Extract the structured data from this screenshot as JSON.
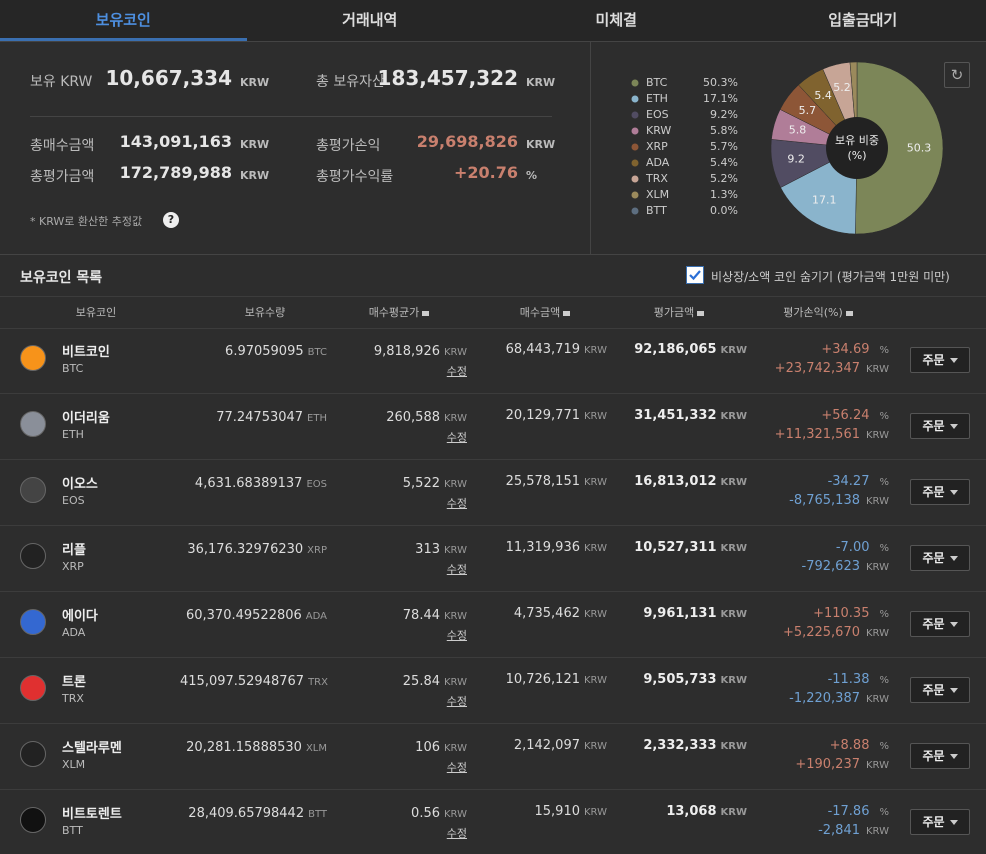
{
  "tabs": {
    "items": [
      "보유코인",
      "거래내역",
      "미체결",
      "입출금대기"
    ],
    "active": 0
  },
  "summary": {
    "items": [
      {
        "label": "보유 KRW",
        "value": "10,667,334",
        "unit": "KRW"
      },
      {
        "label": "총 보유자산",
        "value": "183,457,322",
        "unit": "KRW"
      },
      {
        "label": "총매수금액",
        "value": "143,091,163",
        "unit": "KRW"
      },
      {
        "label": "총평가손익",
        "value": "29,698,826",
        "unit": "KRW",
        "color": "#c9806e"
      },
      {
        "label": "총평가금액",
        "value": "172,789,988",
        "unit": "KRW"
      },
      {
        "label": "총평가수익률",
        "value": "+20.76",
        "unit": "%",
        "color": "#c9806e"
      }
    ],
    "note": "* KRW로 환산한 추정값",
    "help": "?"
  },
  "chart_data": {
    "type": "pie",
    "center_label": [
      "보유 비중",
      "(%)"
    ],
    "categories": [
      "BTC",
      "ETH",
      "EOS",
      "KRW",
      "XRP",
      "ADA",
      "TRX",
      "XLM",
      "BTT"
    ],
    "values": [
      50.3,
      17.1,
      9.2,
      5.8,
      5.7,
      5.4,
      5.2,
      1.3,
      0.0
    ],
    "value_labels": [
      "50.3%",
      "17.1%",
      "9.2%",
      "5.8%",
      "5.7%",
      "5.4%",
      "5.2%",
      "1.3%",
      "0.0%"
    ],
    "colors": [
      "#7c8658",
      "#8ab4cc",
      "#514c62",
      "#b07d98",
      "#8d5637",
      "#80632f",
      "#c7a596",
      "#9b8a5c",
      "#5d6e80"
    ]
  },
  "holdings": {
    "title": "보유코인 목록",
    "filter_label": "비상장/소액 코인 숨기기 (평가금액 1만원 미만)",
    "filter_checked": true,
    "columns": [
      "보유코인",
      "보유수량",
      "매수평균가",
      "매수금액",
      "평가금액",
      "평가손익(%)"
    ],
    "currency": "KRW",
    "percent": "%",
    "edit": "수정",
    "order": "주문",
    "rows": [
      {
        "name": "비트코인",
        "symbol": "BTC",
        "quantity": "6.97059095",
        "avg_price": "9,818,926",
        "buy_amount": "68,443,719",
        "eval_amount": "92,186,065",
        "pnl_rate": "+34.69",
        "pnl": "+23,742,347",
        "icon_color": "#f7931a"
      },
      {
        "name": "이더리움",
        "symbol": "ETH",
        "quantity": "77.24753047",
        "avg_price": "260,588",
        "buy_amount": "20,129,771",
        "eval_amount": "31,451,332",
        "pnl_rate": "+56.24",
        "pnl": "+11,321,561",
        "icon_color": "#8a8f99"
      },
      {
        "name": "이오스",
        "symbol": "EOS",
        "quantity": "4,631.68389137",
        "avg_price": "5,522",
        "buy_amount": "25,578,151",
        "eval_amount": "16,813,012",
        "pnl_rate": "-34.27",
        "pnl": "-8,765,138",
        "icon_color": "#444444"
      },
      {
        "name": "리플",
        "symbol": "XRP",
        "quantity": "36,176.32976230",
        "avg_price": "313",
        "buy_amount": "11,319,936",
        "eval_amount": "10,527,311",
        "pnl_rate": "-7.00",
        "pnl": "-792,623",
        "icon_color": "#222222"
      },
      {
        "name": "에이다",
        "symbol": "ADA",
        "quantity": "60,370.49522806",
        "avg_price": "78.44",
        "buy_amount": "4,735,462",
        "eval_amount": "9,961,131",
        "pnl_rate": "+110.35",
        "pnl": "+5,225,670",
        "icon_color": "#3468d1"
      },
      {
        "name": "트론",
        "symbol": "TRX",
        "quantity": "415,097.52948767",
        "avg_price": "25.84",
        "buy_amount": "10,726,121",
        "eval_amount": "9,505,733",
        "pnl_rate": "-11.38",
        "pnl": "-1,220,387",
        "icon_color": "#e03030"
      },
      {
        "name": "스텔라루멘",
        "symbol": "XLM",
        "quantity": "20,281.15888530",
        "avg_price": "106",
        "buy_amount": "2,142,097",
        "eval_amount": "2,332,333",
        "pnl_rate": "+8.88",
        "pnl": "+190,237",
        "icon_color": "#222222"
      },
      {
        "name": "비트토렌트",
        "symbol": "BTT",
        "quantity": "28,409.65798442",
        "avg_price": "0.56",
        "buy_amount": "15,910",
        "eval_amount": "13,068",
        "pnl_rate": "-17.86",
        "pnl": "-2,841",
        "icon_color": "#111111"
      }
    ]
  }
}
